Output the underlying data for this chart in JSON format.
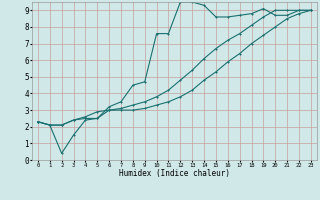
{
  "xlabel": "Humidex (Indice chaleur)",
  "xlim": [
    -0.5,
    23.5
  ],
  "ylim": [
    0,
    9.5
  ],
  "yticks": [
    0,
    1,
    2,
    3,
    4,
    5,
    6,
    7,
    8,
    9
  ],
  "xticks": [
    0,
    1,
    2,
    3,
    4,
    5,
    6,
    7,
    8,
    9,
    10,
    11,
    12,
    13,
    14,
    15,
    16,
    17,
    18,
    19,
    20,
    21,
    22,
    23
  ],
  "bg_color": "#d0e8e8",
  "grid_color": "#c8a0a0",
  "line_color": "#1a7070",
  "line1_x": [
    0,
    1,
    2,
    3,
    4,
    5,
    6,
    7,
    8,
    9,
    10,
    11,
    12,
    13,
    14,
    15,
    16,
    17,
    18,
    19,
    20,
    21,
    22,
    23
  ],
  "line1_y": [
    2.3,
    2.1,
    0.4,
    1.5,
    2.4,
    2.5,
    3.2,
    3.5,
    4.5,
    4.7,
    7.6,
    7.6,
    9.5,
    9.5,
    9.3,
    8.6,
    8.6,
    8.7,
    8.8,
    9.1,
    8.7,
    8.7,
    9.0,
    9.0
  ],
  "line2_x": [
    0,
    1,
    2,
    3,
    4,
    5,
    6,
    7,
    8,
    9,
    10,
    11,
    12,
    13,
    14,
    15,
    16,
    17,
    18,
    19,
    20,
    21,
    22,
    23
  ],
  "line2_y": [
    2.3,
    2.1,
    2.1,
    2.4,
    2.5,
    2.5,
    3.0,
    3.0,
    3.0,
    3.1,
    3.3,
    3.5,
    3.8,
    4.2,
    4.8,
    5.3,
    5.9,
    6.4,
    7.0,
    7.5,
    8.0,
    8.5,
    8.8,
    9.0
  ],
  "line3_x": [
    0,
    1,
    2,
    3,
    4,
    5,
    6,
    7,
    8,
    9,
    10,
    11,
    12,
    13,
    14,
    15,
    16,
    17,
    18,
    19,
    20,
    21,
    22,
    23
  ],
  "line3_y": [
    2.3,
    2.1,
    2.1,
    2.4,
    2.6,
    2.9,
    3.0,
    3.1,
    3.3,
    3.5,
    3.8,
    4.2,
    4.8,
    5.4,
    6.1,
    6.7,
    7.2,
    7.6,
    8.1,
    8.6,
    9.0,
    9.0,
    9.0,
    9.0
  ]
}
